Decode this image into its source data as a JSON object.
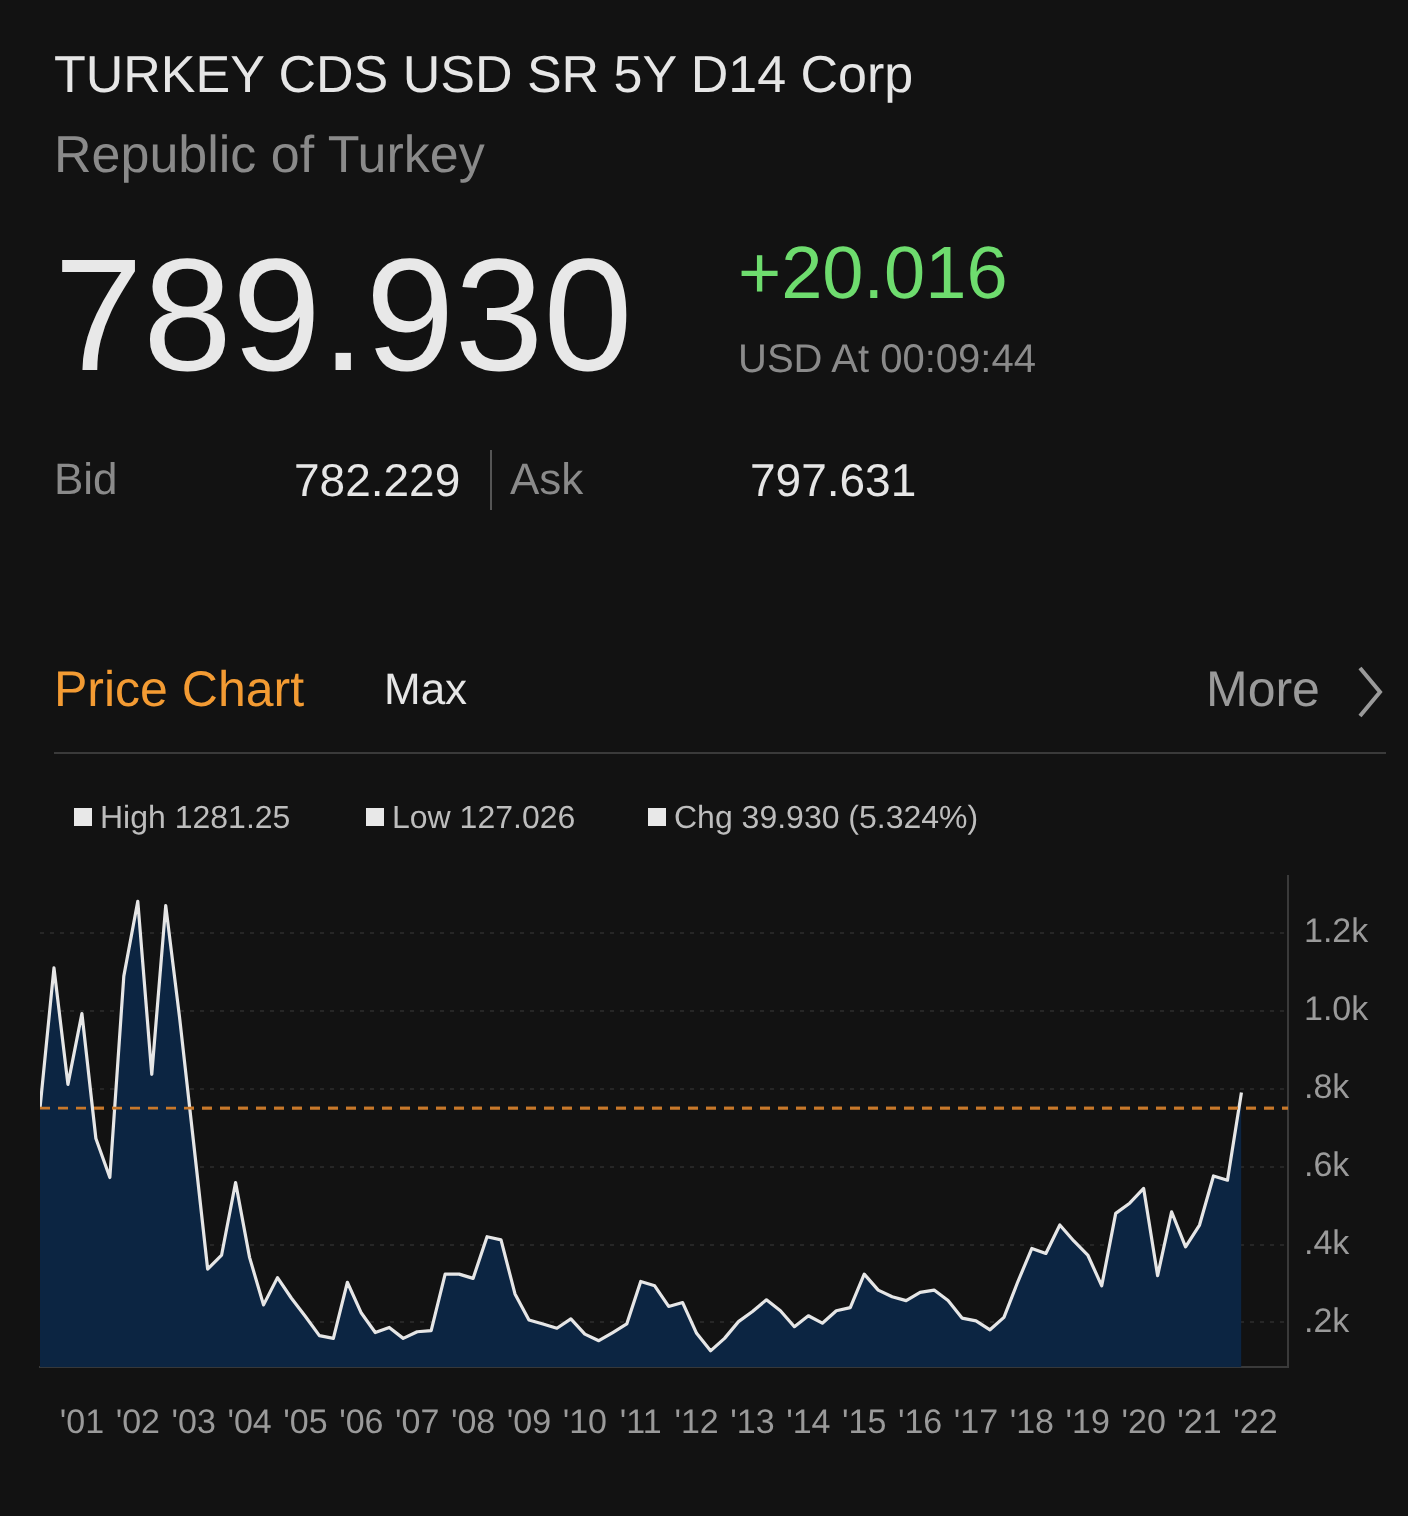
{
  "chart_data": {
    "type": "area",
    "title": "TURKEY CDS USD SR 5Y D14 Corp",
    "subtitle": "Republic of Turkey",
    "annotations": [
      "789.930",
      "+20.016",
      "USD At 00:09:44",
      "Bid",
      "782.229",
      "Ask",
      "797.631",
      "Price Chart",
      "Max",
      "More",
      "High 1281.25",
      "Low 127.026",
      "Chg 39.930 (5.324%)"
    ],
    "x": [
      "2000-10",
      "2001-01",
      "2001-04",
      "2001-07",
      "2001-10",
      "2002-01",
      "2002-04",
      "2002-07",
      "2002-10",
      "2003-01",
      "2003-04",
      "2003-07",
      "2003-10",
      "2004-01",
      "2004-04",
      "2004-07",
      "2004-10",
      "2005-01",
      "2005-04",
      "2005-07",
      "2005-10",
      "2006-01",
      "2006-04",
      "2006-07",
      "2006-10",
      "2007-01",
      "2007-04",
      "2007-07",
      "2007-10",
      "2008-01",
      "2008-04",
      "2008-07",
      "2008-10",
      "2009-01",
      "2009-04",
      "2009-07",
      "2009-10",
      "2010-01",
      "2010-04",
      "2010-07",
      "2010-10",
      "2011-01",
      "2011-04",
      "2011-07",
      "2011-10",
      "2012-01",
      "2012-04",
      "2012-07",
      "2012-10",
      "2013-01",
      "2013-04",
      "2013-07",
      "2013-10",
      "2014-01",
      "2014-04",
      "2014-07",
      "2014-10",
      "2015-01",
      "2015-04",
      "2015-07",
      "2015-10",
      "2016-01",
      "2016-04",
      "2016-07",
      "2016-10",
      "2017-01",
      "2017-04",
      "2017-07",
      "2017-10",
      "2018-01",
      "2018-04",
      "2018-07",
      "2018-10",
      "2019-01",
      "2019-04",
      "2019-07",
      "2019-10",
      "2020-01",
      "2020-04",
      "2020-07",
      "2020-10",
      "2021-01",
      "2021-04",
      "2021-07",
      "2021-10",
      "2022-01",
      "2022-04"
    ],
    "series": [
      {
        "color": "#0c2542",
        "values": [
          750,
          1110,
          811,
          993,
          672,
          572,
          1089,
          1281,
          837,
          1270,
          980,
          660,
          337,
          373,
          559,
          367,
          245,
          315,
          262,
          215,
          166,
          159,
          303,
          224,
          174,
          187,
          159,
          176,
          179,
          324,
          324,
          313,
          420,
          412,
          273,
          206,
          196,
          185,
          209,
          170,
          153,
          174,
          196,
          305,
          294,
          241,
          251,
          172,
          127,
          159,
          202,
          228,
          258,
          230,
          189,
          217,
          198,
          230,
          238,
          324,
          283,
          266,
          256,
          277,
          283,
          256,
          211,
          204,
          181,
          213,
          305,
          390,
          377,
          450,
          409,
          373,
          294,
          480,
          506,
          544,
          320,
          484,
          394,
          450,
          576,
          565,
          790
        ]
      }
    ],
    "xlim": [
      "2000-10",
      "2023-02"
    ],
    "xticks": [
      {
        "value": "2001-07",
        "label": "'01"
      },
      {
        "value": "2002-07",
        "label": "'02"
      },
      {
        "value": "2003-07",
        "label": "'03"
      },
      {
        "value": "2004-07",
        "label": "'04"
      },
      {
        "value": "2005-07",
        "label": "'05"
      },
      {
        "value": "2006-07",
        "label": "'06"
      },
      {
        "value": "2007-07",
        "label": "'07"
      },
      {
        "value": "2008-07",
        "label": "'08"
      },
      {
        "value": "2009-07",
        "label": "'09"
      },
      {
        "value": "2010-07",
        "label": "'10"
      },
      {
        "value": "2011-07",
        "label": "'11"
      },
      {
        "value": "2012-07",
        "label": "'12"
      },
      {
        "value": "2013-07",
        "label": "'13"
      },
      {
        "value": "2014-07",
        "label": "'14"
      },
      {
        "value": "2015-07",
        "label": "'15"
      },
      {
        "value": "2016-07",
        "label": "'16"
      },
      {
        "value": "2017-07",
        "label": "'17"
      },
      {
        "value": "2018-07",
        "label": "'18"
      },
      {
        "value": "2019-07",
        "label": "'19"
      },
      {
        "value": "2020-07",
        "label": "'20"
      },
      {
        "value": "2021-07",
        "label": "'21"
      },
      {
        "value": "2022-07",
        "label": "'22"
      }
    ],
    "ylim": [
      85,
      1345
    ],
    "yticks": [
      {
        "value": 200,
        "label": ".2k"
      },
      {
        "value": 400,
        "label": ".4k"
      },
      {
        "value": 600,
        "label": ".6k"
      },
      {
        "value": 800,
        "label": ".8k"
      },
      {
        "value": 1000,
        "label": "1.0k"
      },
      {
        "value": 1200,
        "label": "1.2k"
      }
    ],
    "ref_lines": [
      {
        "axis": "y",
        "value": 750,
        "color": "#c8782a",
        "line_style": "dashed"
      }
    ],
    "grid": "y",
    "legend": false,
    "marker": "none",
    "line_style": "solid"
  }
}
